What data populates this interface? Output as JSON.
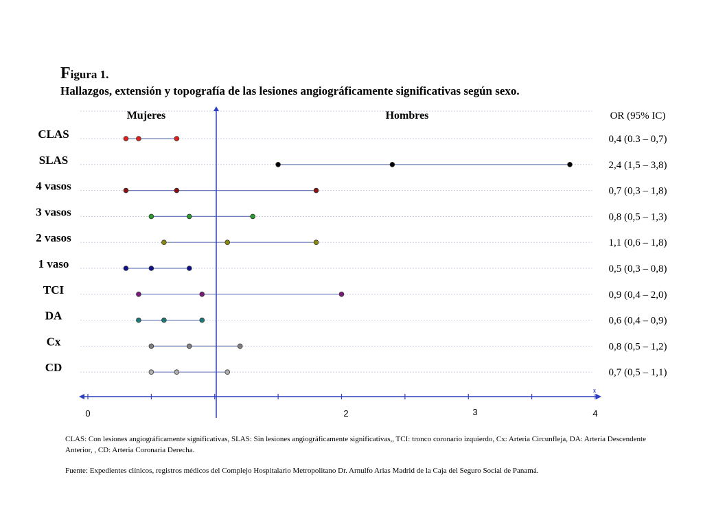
{
  "figure": {
    "title_initial": "F",
    "title_rest": "igura 1.",
    "subtitle": "Hallazgos, extensión y topografía de las lesiones angiográficamente significativas según sexo."
  },
  "chart_data": {
    "type": "forest",
    "header_left": "Mujeres",
    "header_right": "Hombres",
    "header_or": "OR (95% IC)",
    "x_axis_symbol": "x",
    "x_ticks_labeled": [
      "0",
      "2",
      "3",
      "4"
    ],
    "rows": [
      {
        "label": "CLAS",
        "low": 0.3,
        "or": 0.4,
        "high": 0.7,
        "or_text": "0,4 (0.3 – 0,7)",
        "color": "#e0201c"
      },
      {
        "label": "SLAS",
        "low": 1.5,
        "or": 2.4,
        "high": 3.8,
        "or_text": "2,4 (1,5 – 3,8)",
        "color": "#000000"
      },
      {
        "label": "4 vasos",
        "low": 0.3,
        "or": 0.7,
        "high": 1.8,
        "or_text": "0,7 (0,3 – 1,8)",
        "color": "#8b1010"
      },
      {
        "label": "3 vasos",
        "low": 0.5,
        "or": 0.8,
        "high": 1.3,
        "or_text": "0,8 (0,5 – 1,3)",
        "color": "#2a9a2a"
      },
      {
        "label": "2 vasos",
        "low": 0.6,
        "or": 1.1,
        "high": 1.8,
        "or_text": "1,1 (0,6 – 1,8)",
        "color": "#8a8a10"
      },
      {
        "label": "1 vaso",
        "low": 0.3,
        "or": 0.5,
        "high": 0.8,
        "or_text": "0,5 (0,3 – 0,8)",
        "color": "#10108a"
      },
      {
        "label": "TCI",
        "low": 0.4,
        "or": 0.9,
        "high": 2.0,
        "or_text": "0,9 (0,4 – 2,0)",
        "color": "#7a1a7a"
      },
      {
        "label": "DA",
        "low": 0.4,
        "or": 0.6,
        "high": 0.9,
        "or_text": "0,6 (0,4 – 0,9)",
        "color": "#1a7a7a"
      },
      {
        "label": "Cx",
        "low": 0.5,
        "or": 0.8,
        "high": 1.2,
        "or_text": "0,8 (0,5 – 1,2)",
        "color": "#808080"
      },
      {
        "label": "CD",
        "low": 0.5,
        "or": 0.7,
        "high": 1.1,
        "or_text": "0,7 (0,5 – 1,1)",
        "color": "#b0b0b0"
      }
    ],
    "grid": true,
    "reference_line": 1
  },
  "notes": {
    "abbreviations": "CLAS: Con lesiones angiográficamente significativas, SLAS: Sin lesiones angiográficamente significativas,, TCI: tronco coronario izquierdo, Cx: Arteria Circunfleja, DA: Arteria Descendente Anterior, , CD: Arteria Coronaria Derecha.",
    "source": "Fuente: Expedientes clínicos, registros médicos del Complejo Hospitalario Metropolitano Dr. Arnulfo Arias Madrid de la Caja del Seguro Social de Panamá."
  },
  "colors": {
    "axis": "#2d3fbf",
    "whisker": "#6e7fb8",
    "grid": "#c9cde0"
  }
}
